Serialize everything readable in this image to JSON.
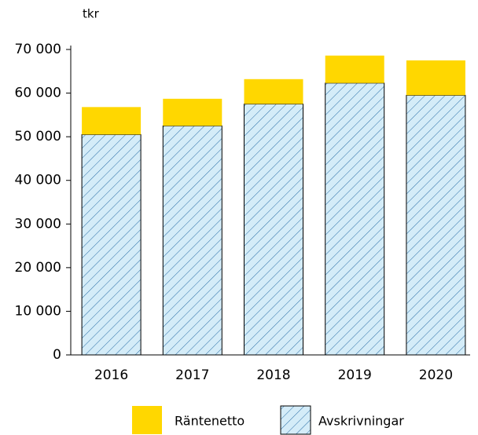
{
  "chart_data": {
    "type": "stacked_bar",
    "y_unit_label": "tkr",
    "categories": [
      "2016",
      "2017",
      "2018",
      "2019",
      "2020"
    ],
    "series": [
      {
        "name": "Räntenetto",
        "color": "#ffd700",
        "values": [
          6300,
          6200,
          5700,
          6300,
          8000
        ]
      },
      {
        "name": "Avskrivningar",
        "color": "#d4ecf8",
        "pattern": "hatch",
        "hatch_color": "#2a6ea6",
        "values": [
          50500,
          52500,
          57500,
          62300,
          59500
        ]
      }
    ],
    "ylim": [
      0,
      70000
    ],
    "yticks": [
      0,
      {
        "value": 10000,
        "label": "10 000"
      },
      {
        "value": 20000,
        "label": "20 000"
      },
      {
        "value": 30000,
        "label": "30 000"
      },
      {
        "value": 40000,
        "label": "40 000"
      },
      {
        "value": 50000,
        "label": "50 000"
      },
      {
        "value": 60000,
        "label": "60 000"
      },
      {
        "value": 70000,
        "label": "70 000"
      }
    ],
    "grid": false,
    "legend": "bottom"
  }
}
